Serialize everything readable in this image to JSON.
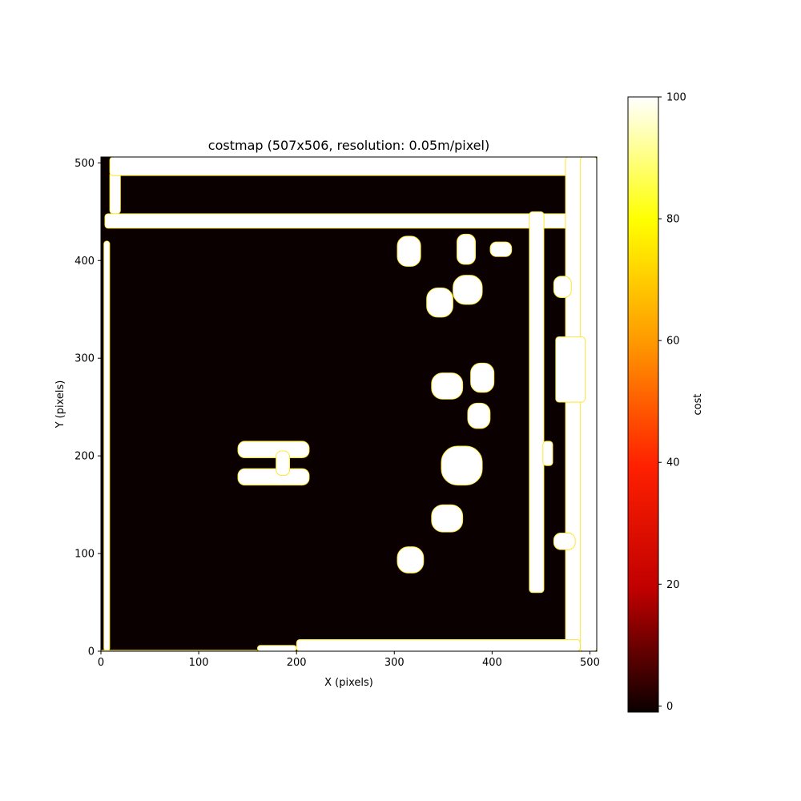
{
  "chart_data": {
    "type": "heatmap",
    "title": "costmap (507x506, resolution: 0.05m/pixel)",
    "xlabel": "X (pixels)",
    "ylabel": "Y (pixels)",
    "xlim": [
      0,
      507
    ],
    "ylim": [
      0,
      506
    ],
    "xticks": [
      0,
      100,
      200,
      300,
      400,
      500
    ],
    "yticks": [
      0,
      100,
      200,
      300,
      400,
      500
    ],
    "grid": false,
    "colormap": "hot",
    "colorbar": {
      "label": "cost",
      "min": -1,
      "max": 100,
      "ticks": [
        0,
        20,
        40,
        60,
        80,
        100
      ],
      "stops": [
        "#0a0000",
        "#c00000",
        "#ff2000",
        "#ff9800",
        "#ffff00",
        "#ffffff"
      ]
    },
    "background_cost": 0,
    "obstacle_cost": 100,
    "obstacles": [
      {
        "shape": "rect",
        "x": [
          3,
          9
        ],
        "y": [
          0,
          420
        ]
      },
      {
        "shape": "rect",
        "x": [
          4,
          490
        ],
        "y": [
          433,
          448
        ]
      },
      {
        "shape": "rect",
        "x": [
          9,
          20
        ],
        "y": [
          448,
          491
        ]
      },
      {
        "shape": "rect",
        "x": [
          9,
          490
        ],
        "y": [
          487,
          506
        ]
      },
      {
        "shape": "rect",
        "x": [
          475,
          507
        ],
        "y": [
          0,
          506
        ]
      },
      {
        "shape": "rect",
        "x": [
          490,
          507
        ],
        "y": [
          0,
          506
        ]
      },
      {
        "shape": "rect",
        "x": [
          0,
          160
        ],
        "y": [
          0,
          1
        ]
      },
      {
        "shape": "rect",
        "x": [
          160,
          200
        ],
        "y": [
          0,
          6
        ]
      },
      {
        "shape": "rect",
        "x": [
          200,
          490
        ],
        "y": [
          0,
          12
        ]
      },
      {
        "shape": "rect",
        "x": [
          438,
          453
        ],
        "y": [
          60,
          450
        ]
      },
      {
        "shape": "rect",
        "x": [
          452,
          462
        ],
        "y": [
          190,
          215
        ]
      },
      {
        "shape": "rect",
        "x": [
          465,
          495
        ],
        "y": [
          255,
          322
        ]
      },
      {
        "shape": "blob",
        "x": [
          463,
          485
        ],
        "y": [
          104,
          121
        ]
      },
      {
        "shape": "blob",
        "x": [
          463,
          481
        ],
        "y": [
          362,
          384
        ]
      },
      {
        "shape": "blob",
        "x": [
          140,
          213
        ],
        "y": [
          198,
          215
        ]
      },
      {
        "shape": "blob",
        "x": [
          140,
          213
        ],
        "y": [
          170,
          187
        ]
      },
      {
        "shape": "blob",
        "x": [
          179,
          193
        ],
        "y": [
          180,
          205
        ]
      },
      {
        "shape": "blob",
        "x": [
          303,
          330
        ],
        "y": [
          80,
          107
        ]
      },
      {
        "shape": "blob",
        "x": [
          338,
          370
        ],
        "y": [
          122,
          150
        ]
      },
      {
        "shape": "blob",
        "x": [
          348,
          390
        ],
        "y": [
          170,
          210
        ]
      },
      {
        "shape": "blob",
        "x": [
          375,
          398
        ],
        "y": [
          228,
          254
        ]
      },
      {
        "shape": "blob",
        "x": [
          338,
          370
        ],
        "y": [
          258,
          285
        ]
      },
      {
        "shape": "blob",
        "x": [
          378,
          402
        ],
        "y": [
          265,
          295
        ]
      },
      {
        "shape": "blob",
        "x": [
          333,
          360
        ],
        "y": [
          342,
          372
        ]
      },
      {
        "shape": "blob",
        "x": [
          360,
          390
        ],
        "y": [
          355,
          385
        ]
      },
      {
        "shape": "blob",
        "x": [
          303,
          327
        ],
        "y": [
          394,
          425
        ]
      },
      {
        "shape": "blob",
        "x": [
          364,
          383
        ],
        "y": [
          396,
          427
        ]
      },
      {
        "shape": "blob",
        "x": [
          398,
          420
        ],
        "y": [
          404,
          419
        ]
      }
    ]
  }
}
